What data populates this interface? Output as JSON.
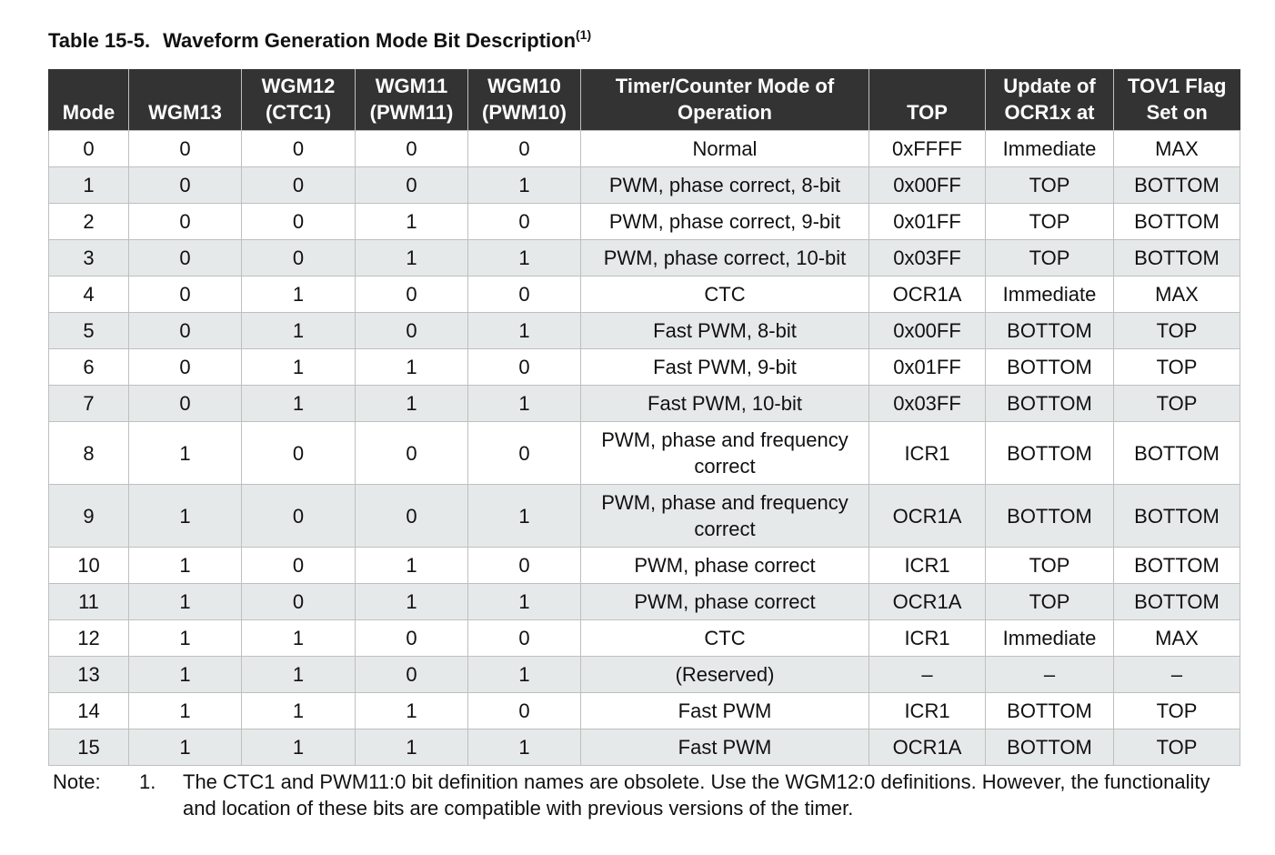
{
  "caption": {
    "number": "Table 15-5.",
    "title": "Waveform Generation Mode Bit Description",
    "footnote_ref": "(1)"
  },
  "table": {
    "headers": [
      [
        "Mode"
      ],
      [
        "WGM13"
      ],
      [
        "WGM12",
        "(CTC1)"
      ],
      [
        "WGM11",
        "(PWM11)"
      ],
      [
        "WGM10",
        "(PWM10)"
      ],
      [
        "Timer/Counter Mode of",
        "Operation"
      ],
      [
        "TOP"
      ],
      [
        "Update of",
        "OCR1x at"
      ],
      [
        "TOV1 Flag",
        "Set on"
      ]
    ],
    "rows": [
      [
        "0",
        "0",
        "0",
        "0",
        "0",
        "Normal",
        "0xFFFF",
        "Immediate",
        "MAX"
      ],
      [
        "1",
        "0",
        "0",
        "0",
        "1",
        "PWM, phase correct, 8-bit",
        "0x00FF",
        "TOP",
        "BOTTOM"
      ],
      [
        "2",
        "0",
        "0",
        "1",
        "0",
        "PWM, phase correct, 9-bit",
        "0x01FF",
        "TOP",
        "BOTTOM"
      ],
      [
        "3",
        "0",
        "0",
        "1",
        "1",
        "PWM, phase correct, 10-bit",
        "0x03FF",
        "TOP",
        "BOTTOM"
      ],
      [
        "4",
        "0",
        "1",
        "0",
        "0",
        "CTC",
        "OCR1A",
        "Immediate",
        "MAX"
      ],
      [
        "5",
        "0",
        "1",
        "0",
        "1",
        "Fast PWM, 8-bit",
        "0x00FF",
        "BOTTOM",
        "TOP"
      ],
      [
        "6",
        "0",
        "1",
        "1",
        "0",
        "Fast PWM, 9-bit",
        "0x01FF",
        "BOTTOM",
        "TOP"
      ],
      [
        "7",
        "0",
        "1",
        "1",
        "1",
        "Fast PWM, 10-bit",
        "0x03FF",
        "BOTTOM",
        "TOP"
      ],
      [
        "8",
        "1",
        "0",
        "0",
        "0",
        "PWM, phase and frequency correct",
        "ICR1",
        "BOTTOM",
        "BOTTOM"
      ],
      [
        "9",
        "1",
        "0",
        "0",
        "1",
        "PWM, phase and frequency correct",
        "OCR1A",
        "BOTTOM",
        "BOTTOM"
      ],
      [
        "10",
        "1",
        "0",
        "1",
        "0",
        "PWM, phase correct",
        "ICR1",
        "TOP",
        "BOTTOM"
      ],
      [
        "11",
        "1",
        "0",
        "1",
        "1",
        "PWM, phase correct",
        "OCR1A",
        "TOP",
        "BOTTOM"
      ],
      [
        "12",
        "1",
        "1",
        "0",
        "0",
        "CTC",
        "ICR1",
        "Immediate",
        "MAX"
      ],
      [
        "13",
        "1",
        "1",
        "0",
        "1",
        "(Reserved)",
        "–",
        "–",
        "–"
      ],
      [
        "14",
        "1",
        "1",
        "1",
        "0",
        "Fast PWM",
        "ICR1",
        "BOTTOM",
        "TOP"
      ],
      [
        "15",
        "1",
        "1",
        "1",
        "1",
        "Fast PWM",
        "OCR1A",
        "BOTTOM",
        "TOP"
      ]
    ]
  },
  "note": {
    "label": "Note:",
    "index": "1.",
    "text": "The CTC1 and PWM11:0 bit definition names are obsolete. Use the WGM12:0 definitions. However, the functionality and location of these bits are compatible with previous versions of the timer."
  },
  "colors": {
    "header_bg": "#333333",
    "header_text": "#ffffff",
    "stripe_bg": "#e6e9ea",
    "border": "#bfbfbf"
  }
}
